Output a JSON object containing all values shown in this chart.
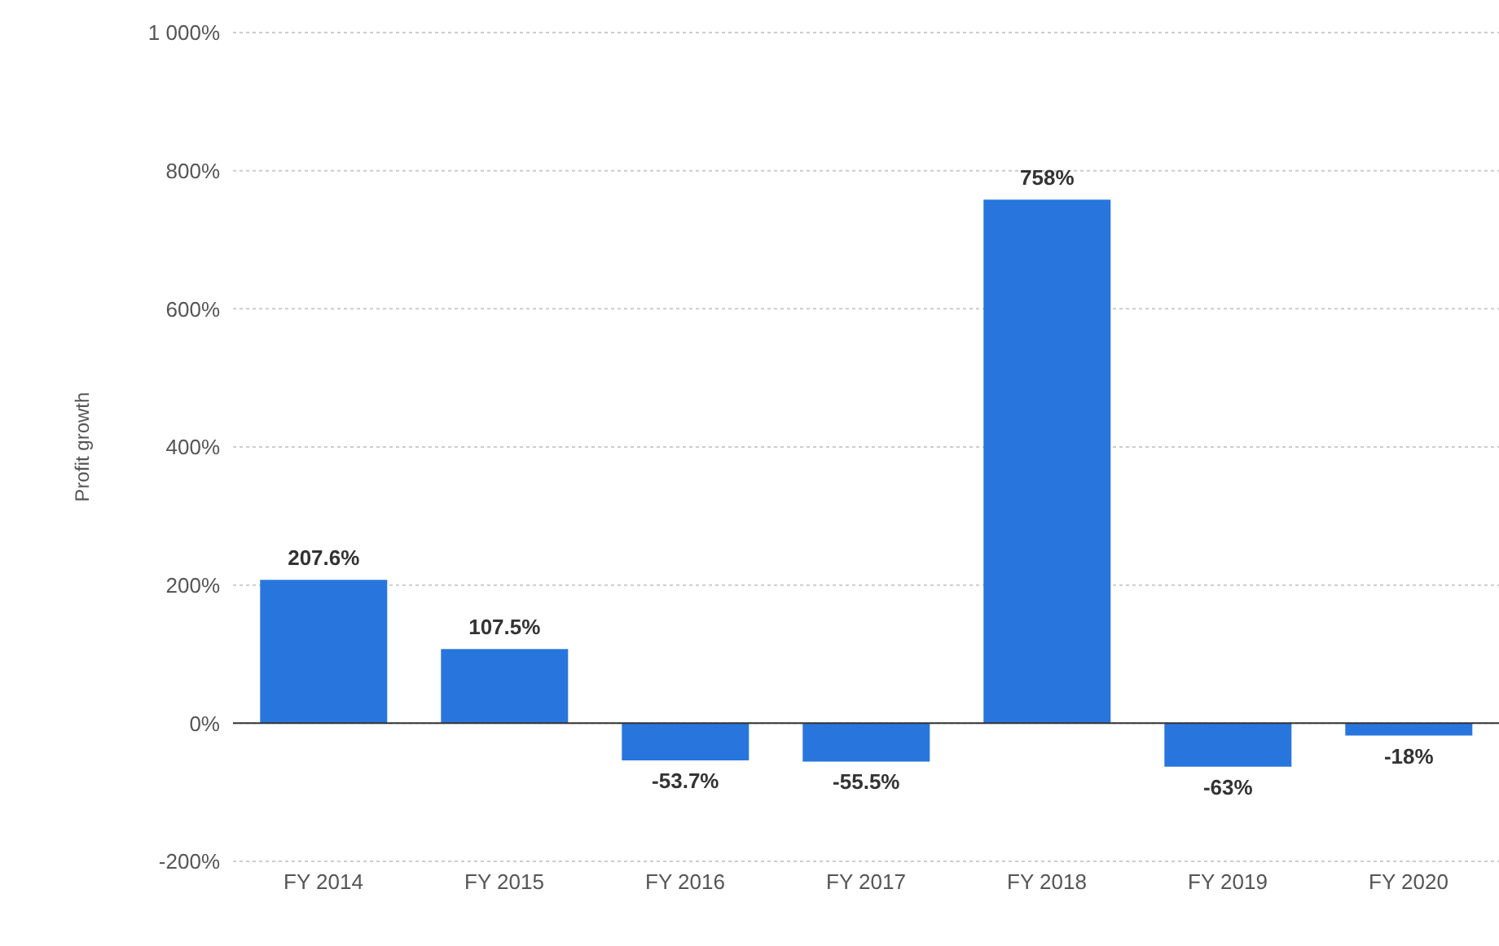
{
  "chart_data": {
    "type": "bar",
    "ylabel": "Profit growth",
    "categories": [
      "FY 2014",
      "FY 2015",
      "FY 2016",
      "FY 2017",
      "FY 2018",
      "FY 2019",
      "FY 2020"
    ],
    "values": [
      207.6,
      107.5,
      -53.7,
      -55.5,
      758,
      -63,
      -18
    ],
    "value_labels": [
      "207.6%",
      "107.5%",
      "-53.7%",
      "-55.5%",
      "758%",
      "-63%",
      "-18%"
    ],
    "color": "#2876dd",
    "ylim": [
      -200,
      1000
    ],
    "yticks": [
      {
        "value": -200,
        "label": "-200%"
      },
      {
        "value": 0,
        "label": "0%"
      },
      {
        "value": 200,
        "label": "200%"
      },
      {
        "value": 400,
        "label": "400%"
      },
      {
        "value": 600,
        "label": "600%"
      },
      {
        "value": 800,
        "label": "800%"
      },
      {
        "value": 1000,
        "label": "1 000%"
      }
    ],
    "grid": "y"
  }
}
